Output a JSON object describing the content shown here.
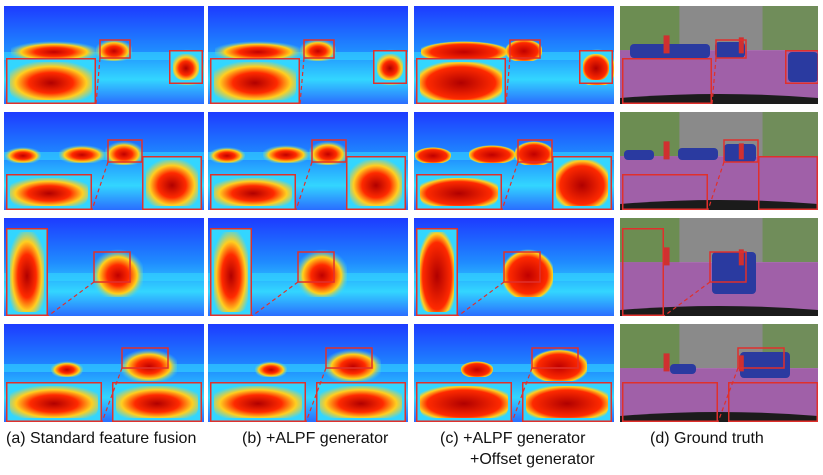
{
  "figure": {
    "columns": [
      {
        "caption": "(a)  Standard feature fusion",
        "kind": "heatmap"
      },
      {
        "caption": "(b) +ALPF generator",
        "kind": "heatmap"
      },
      {
        "caption_line1": "(c) +ALPF generator",
        "caption_line2": "+Offset generator",
        "kind": "heatmap-sharp"
      },
      {
        "caption": "(d) Ground truth",
        "kind": "segmentation"
      }
    ],
    "rows": 4,
    "colors": {
      "heat_low": "#1a3cff",
      "heat_mid": "#33d6ff",
      "heat_high": "#ff2a00",
      "highlight_box": "#e0302c",
      "gt_car": "#2a3aa0",
      "gt_road": "#a060a8",
      "gt_person": "#d03030",
      "gt_vegetation": "#5f8f3a",
      "gt_building": "#8a8a8a"
    }
  }
}
